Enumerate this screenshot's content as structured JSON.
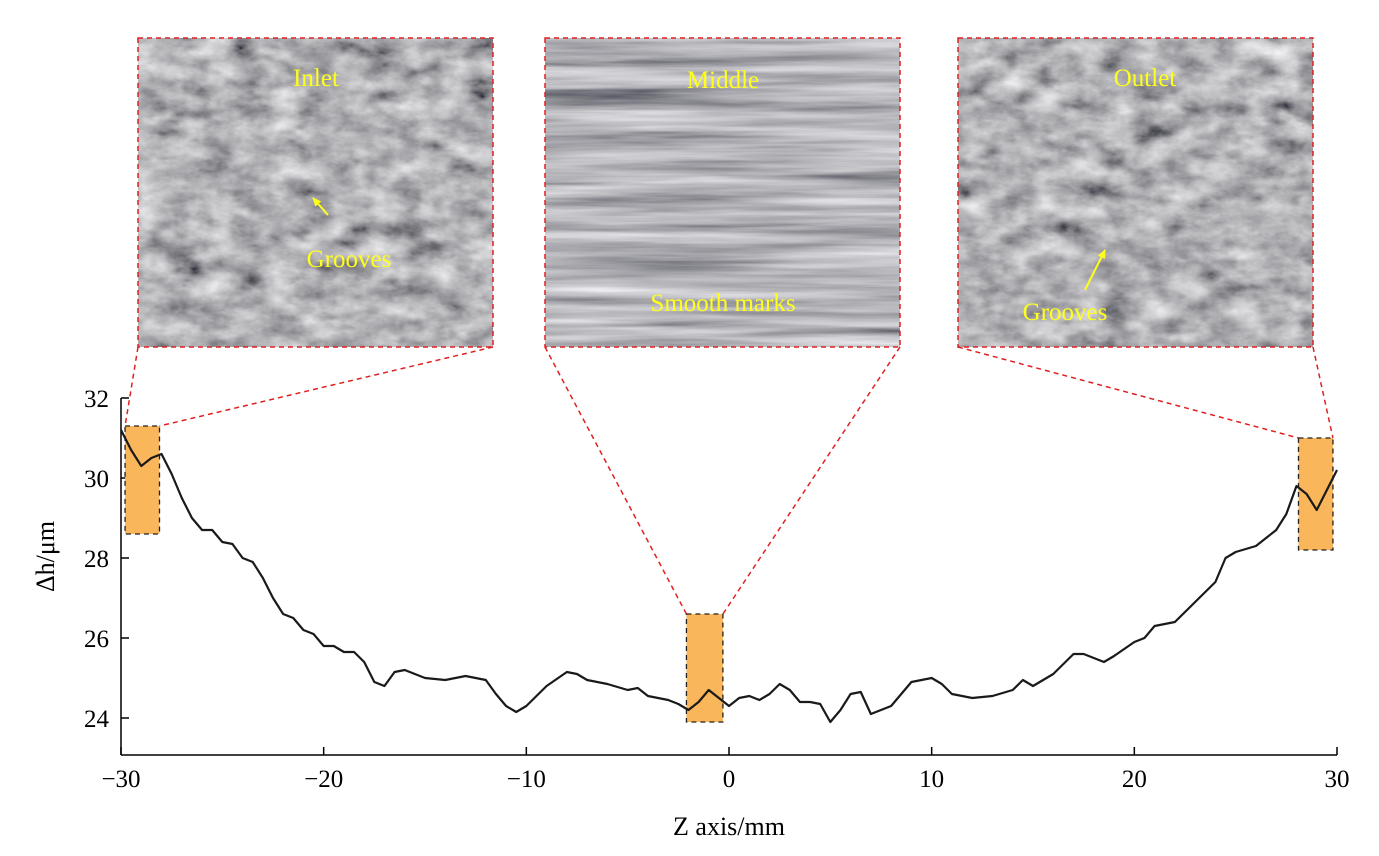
{
  "chart_data": {
    "type": "line",
    "xlabel": "Z axis/mm",
    "ylabel": "Δh/μm",
    "xlim": [
      -30,
      30
    ],
    "ylim": [
      23.075,
      32
    ],
    "xticks": [
      {
        "value": -30,
        "label": "−30"
      },
      {
        "value": -20,
        "label": "−20"
      },
      {
        "value": -10,
        "label": "−10"
      },
      0,
      10,
      20,
      30
    ],
    "yticks": [
      24,
      26,
      28,
      30,
      32
    ],
    "color": "#1a1a1a",
    "x": [
      -30,
      -29.5,
      -29,
      -28.5,
      -28,
      -27.5,
      -27,
      -26.5,
      -26,
      -25.5,
      -25,
      -24.5,
      -24,
      -23.5,
      -23,
      -22.5,
      -22,
      -21.5,
      -21,
      -20.5,
      -20,
      -19.5,
      -19,
      -18.5,
      -18,
      -17.5,
      -17,
      -16.5,
      -16,
      -15,
      -14,
      -13,
      -12.5,
      -12,
      -11.5,
      -11,
      -10.5,
      -10,
      -9,
      -8,
      -7.5,
      -7,
      -6,
      -5,
      -4.5,
      -4,
      -3,
      -2.5,
      -2,
      -1.5,
      -1,
      -0.5,
      0,
      0.5,
      1,
      1.5,
      2,
      2.5,
      3,
      3.5,
      4,
      4.5,
      5,
      5.5,
      6,
      6.5,
      7,
      8,
      9,
      10,
      10.5,
      11,
      12,
      13,
      14,
      14.5,
      15,
      16,
      17,
      17.5,
      18.5,
      19,
      20,
      20.5,
      21,
      22,
      23,
      24,
      24.5,
      25,
      26,
      27,
      27.5,
      28,
      28.5,
      29,
      29.5,
      30
    ],
    "values": [
      31.2,
      30.7,
      30.3,
      30.5,
      30.6,
      30.1,
      29.5,
      29.0,
      28.7,
      28.7,
      28.4,
      28.35,
      28.0,
      27.9,
      27.5,
      27.0,
      26.6,
      26.5,
      26.2,
      26.1,
      25.8,
      25.8,
      25.65,
      25.65,
      25.4,
      24.9,
      24.8,
      25.15,
      25.2,
      25.0,
      24.95,
      25.05,
      25.0,
      24.95,
      24.6,
      24.3,
      24.15,
      24.3,
      24.8,
      25.15,
      25.1,
      24.95,
      24.85,
      24.7,
      24.75,
      24.55,
      24.45,
      24.35,
      24.2,
      24.4,
      24.7,
      24.5,
      24.3,
      24.5,
      24.55,
      24.45,
      24.6,
      24.85,
      24.7,
      24.4,
      24.4,
      24.35,
      23.9,
      24.2,
      24.6,
      24.65,
      24.1,
      24.3,
      24.9,
      25.0,
      24.85,
      24.6,
      24.5,
      24.55,
      24.7,
      24.95,
      24.8,
      25.1,
      25.6,
      25.6,
      25.4,
      25.55,
      25.9,
      26.0,
      26.3,
      26.4,
      26.9,
      27.4,
      28.0,
      28.15,
      28.3,
      28.7,
      29.1,
      29.8,
      29.6,
      29.2,
      29.7,
      30.2
    ],
    "highlight_color": "#f9b65a",
    "highlights": [
      {
        "x": [
          -29.8,
          -28.1
        ],
        "y": [
          28.6,
          31.3
        ]
      },
      {
        "x": [
          -2.1,
          -0.3
        ],
        "y": [
          23.9,
          26.6
        ]
      },
      {
        "x": [
          28.1,
          29.8
        ],
        "y": [
          28.2,
          31.0
        ]
      }
    ],
    "insets": [
      {
        "label": "Inlet",
        "annotation": "Grooves"
      },
      {
        "label": "Middle",
        "annotation": "Smooth marks"
      },
      {
        "label": "Outlet",
        "annotation": "Grooves"
      }
    ]
  }
}
